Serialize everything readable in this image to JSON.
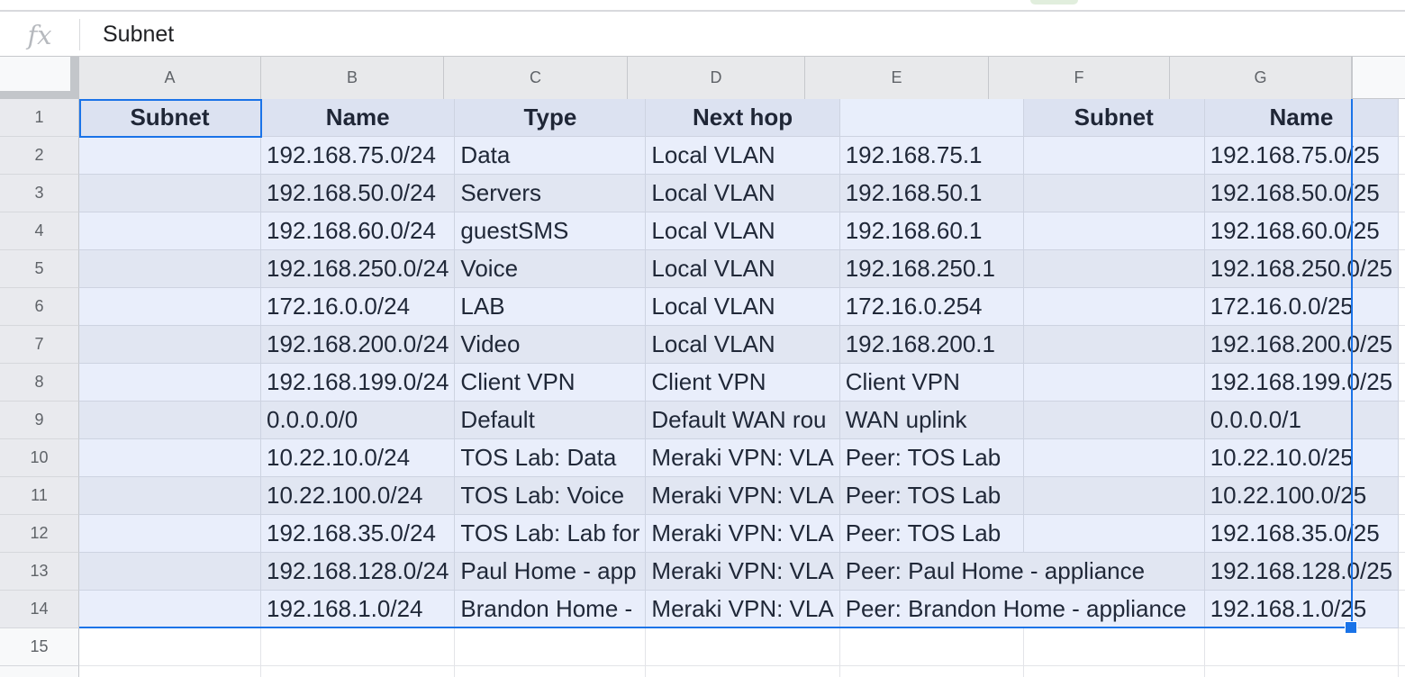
{
  "formula_bar": {
    "fx_label": "fx",
    "value": "Subnet"
  },
  "column_headers": [
    "A",
    "B",
    "C",
    "D",
    "E",
    "F",
    "G"
  ],
  "row_numbers": [
    "1",
    "2",
    "3",
    "4",
    "5",
    "6",
    "7",
    "8",
    "9",
    "10",
    "11",
    "12",
    "13",
    "14",
    "15"
  ],
  "sheet": {
    "header_row": {
      "a": "Subnet",
      "b": "Name",
      "c": "Type",
      "d": "Next hop",
      "e": "",
      "f": "Subnet",
      "g": "Name"
    },
    "rows": [
      {
        "row": 2,
        "a": "",
        "b": "192.168.75.0/24",
        "c": "Data",
        "d": "Local VLAN",
        "e": "192.168.75.1",
        "f": "",
        "g": "192.168.75.0/25"
      },
      {
        "row": 3,
        "a": "",
        "b": "192.168.50.0/24",
        "c": "Servers",
        "d": "Local VLAN",
        "e": "192.168.50.1",
        "f": "",
        "g": "192.168.50.0/25"
      },
      {
        "row": 4,
        "a": "",
        "b": "192.168.60.0/24",
        "c": "guestSMS",
        "d": "Local VLAN",
        "e": "192.168.60.1",
        "f": "",
        "g": "192.168.60.0/25"
      },
      {
        "row": 5,
        "a": "",
        "b": "192.168.250.0/24",
        "c": "Voice",
        "d": "Local VLAN",
        "e": "192.168.250.1",
        "f": "",
        "g": "192.168.250.0/25"
      },
      {
        "row": 6,
        "a": "",
        "b": "172.16.0.0/24",
        "c": "LAB",
        "d": "Local VLAN",
        "e": "172.16.0.254",
        "f": "",
        "g": "172.16.0.0/25"
      },
      {
        "row": 7,
        "a": "",
        "b": "192.168.200.0/24",
        "c": "Video",
        "d": "Local VLAN",
        "e": "192.168.200.1",
        "f": "",
        "g": "192.168.200.0/25"
      },
      {
        "row": 8,
        "a": "",
        "b": "192.168.199.0/24",
        "c": "Client VPN",
        "d": "Client VPN",
        "e": "Client VPN",
        "f": "",
        "g": "192.168.199.0/25"
      },
      {
        "row": 9,
        "a": "",
        "b": "0.0.0.0/0",
        "c": "Default",
        "d": "Default WAN rou",
        "e": "WAN uplink",
        "f": "",
        "g": "0.0.0.0/1"
      },
      {
        "row": 10,
        "a": "",
        "b": "10.22.10.0/24",
        "c": "TOS Lab: Data",
        "d": "Meraki VPN: VLA",
        "e": "Peer: TOS Lab",
        "f": "",
        "g": "10.22.10.0/25"
      },
      {
        "row": 11,
        "a": "",
        "b": "10.22.100.0/24",
        "c": "TOS Lab: Voice",
        "d": "Meraki VPN: VLA",
        "e": "Peer: TOS Lab",
        "f": "",
        "g": "10.22.100.0/25"
      },
      {
        "row": 12,
        "a": "",
        "b": "192.168.35.0/24",
        "c": "TOS Lab: Lab for",
        "d": "Meraki VPN: VLA",
        "e": "Peer: TOS Lab",
        "f": "",
        "g": "192.168.35.0/25"
      },
      {
        "row": 13,
        "a": "",
        "b": "192.168.128.0/24",
        "c": "Paul Home - app",
        "d": "Meraki VPN: VLA",
        "e": "Peer: Paul Home - appliance",
        "e_span": 2,
        "g": "192.168.128.0/25"
      },
      {
        "row": 14,
        "a": "",
        "b": "192.168.1.0/24",
        "c": "Brandon Home - ",
        "d": "Meraki VPN: VLA",
        "e": "Peer: Brandon Home - appliance",
        "e_span": 2,
        "g": "192.168.1.0/25"
      }
    ]
  },
  "colors": {
    "selection_blue": "#1a73e8",
    "band_light": "#e9eefb",
    "band_dark": "#e1e6f2",
    "header_band": "#dce2f1",
    "gutter_gray": "#e9eaee",
    "toolbar_sliver_green": "#e1eedd"
  }
}
